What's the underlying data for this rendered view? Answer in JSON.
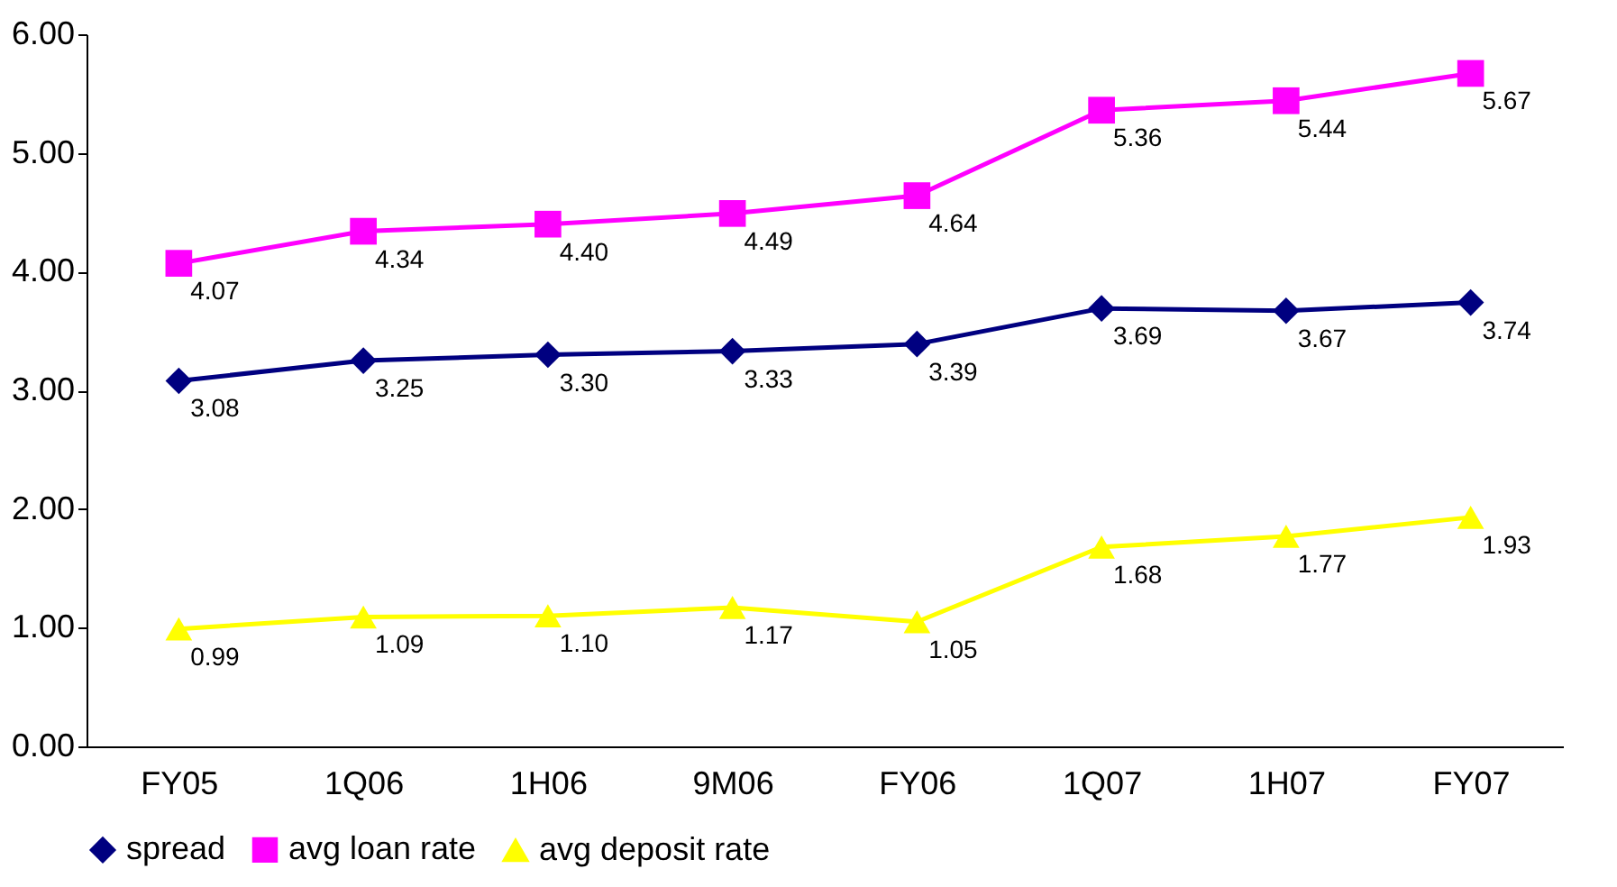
{
  "chart_data": {
    "type": "line",
    "categories": [
      "FY05",
      "1Q06",
      "1H06",
      "9M06",
      "FY06",
      "1Q07",
      "1H07",
      "FY07"
    ],
    "series": [
      {
        "name": "spread",
        "color": "#000080",
        "marker": "diamond",
        "values": [
          3.08,
          3.25,
          3.3,
          3.33,
          3.39,
          3.69,
          3.67,
          3.74
        ],
        "value_labels": [
          "3.08",
          "3.25",
          "3.30",
          "3.33",
          "3.39",
          "3.69",
          "3.67",
          "3.74"
        ]
      },
      {
        "name": "avg loan rate",
        "color": "#ff00ff",
        "marker": "square",
        "values": [
          4.07,
          4.34,
          4.4,
          4.49,
          4.64,
          5.36,
          5.44,
          5.67
        ],
        "value_labels": [
          "4.07",
          "4.34",
          "4.40",
          "4.49",
          "4.64",
          "5.36",
          "5.44",
          "5.67"
        ]
      },
      {
        "name": "avg deposit rate",
        "color": "#ffff00",
        "marker": "triangle",
        "values": [
          0.99,
          1.09,
          1.1,
          1.17,
          1.05,
          1.68,
          1.77,
          1.93
        ],
        "value_labels": [
          "0.99",
          "1.09",
          "1.10",
          "1.17",
          "1.05",
          "1.68",
          "1.77",
          "1.93"
        ]
      }
    ],
    "ylim": [
      0,
      6
    ],
    "yticks": [
      {
        "value": 0,
        "label": "0.00"
      },
      {
        "value": 1,
        "label": "1.00"
      },
      {
        "value": 2,
        "label": "2.00"
      },
      {
        "value": 3,
        "label": "3.00"
      },
      {
        "value": 4,
        "label": "4.00"
      },
      {
        "value": 5,
        "label": "5.00"
      },
      {
        "value": 6,
        "label": "6.00"
      }
    ],
    "grid": false,
    "legend": "bottom",
    "line_style": "solid"
  }
}
